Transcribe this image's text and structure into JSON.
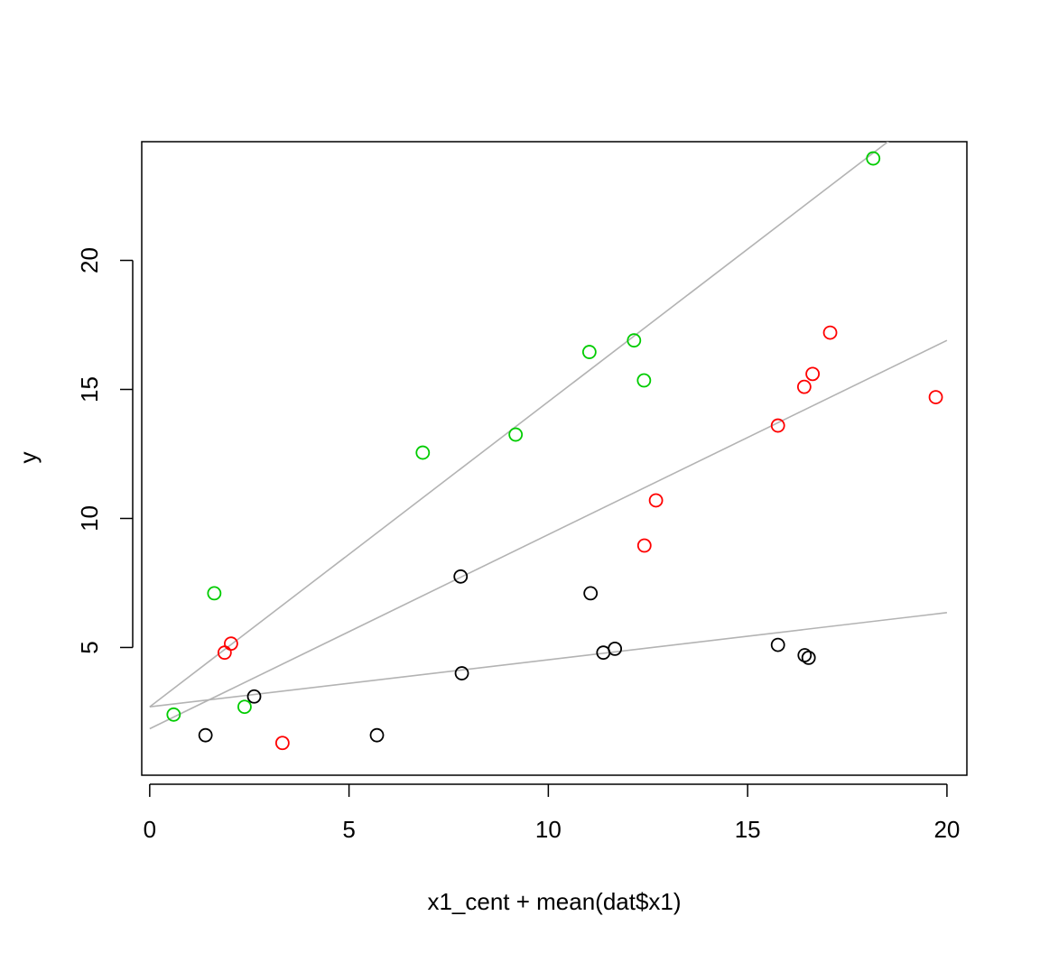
{
  "chart_data": {
    "type": "scatter",
    "title": "",
    "xlabel": "x1_cent + mean(dat$x1)",
    "ylabel": "y",
    "xlim": [
      -0.2,
      20.5
    ],
    "ylim": [
      0.05,
      24.6
    ],
    "x_ticks": [
      "0",
      "5",
      "10",
      "15",
      "20"
    ],
    "y_ticks": [
      "5",
      "10",
      "15",
      "20"
    ],
    "grid": false,
    "legend": "none",
    "series": [
      {
        "color": "#000000",
        "points": [
          {
            "x": 1.4,
            "y": 1.6
          },
          {
            "x": 2.62,
            "y": 3.1
          },
          {
            "x": 5.7,
            "y": 1.6
          },
          {
            "x": 7.8,
            "y": 7.75
          },
          {
            "x": 7.83,
            "y": 4.0
          },
          {
            "x": 11.06,
            "y": 7.1
          },
          {
            "x": 11.38,
            "y": 4.8
          },
          {
            "x": 11.67,
            "y": 4.95
          },
          {
            "x": 15.76,
            "y": 5.1
          },
          {
            "x": 16.43,
            "y": 4.7
          },
          {
            "x": 16.53,
            "y": 4.6
          }
        ]
      },
      {
        "color": "#ff0000",
        "points": [
          {
            "x": 1.88,
            "y": 4.8
          },
          {
            "x": 2.04,
            "y": 5.15
          },
          {
            "x": 3.33,
            "y": 1.3
          },
          {
            "x": 12.41,
            "y": 8.95
          },
          {
            "x": 12.7,
            "y": 10.7
          },
          {
            "x": 15.76,
            "y": 13.6
          },
          {
            "x": 16.42,
            "y": 15.1
          },
          {
            "x": 16.63,
            "y": 15.6
          },
          {
            "x": 17.07,
            "y": 17.2
          },
          {
            "x": 19.72,
            "y": 14.7
          }
        ]
      },
      {
        "color": "#00cc00",
        "points": [
          {
            "x": 0.6,
            "y": 2.4
          },
          {
            "x": 1.62,
            "y": 7.1
          },
          {
            "x": 2.38,
            "y": 2.7
          },
          {
            "x": 6.85,
            "y": 12.55
          },
          {
            "x": 9.18,
            "y": 13.25
          },
          {
            "x": 11.03,
            "y": 16.45
          },
          {
            "x": 12.15,
            "y": 16.9
          },
          {
            "x": 12.4,
            "y": 15.35
          },
          {
            "x": 18.15,
            "y": 23.95
          }
        ]
      }
    ],
    "lines": [
      {
        "color": "#b3b3b3",
        "x": [
          0,
          20
        ],
        "y": [
          2.7,
          6.35
        ]
      },
      {
        "color": "#b3b3b3",
        "x": [
          0,
          20
        ],
        "y": [
          1.85,
          16.9
        ]
      },
      {
        "color": "#b3b3b3",
        "x": [
          0,
          20
        ],
        "y": [
          2.7,
          26.35
        ]
      }
    ]
  }
}
